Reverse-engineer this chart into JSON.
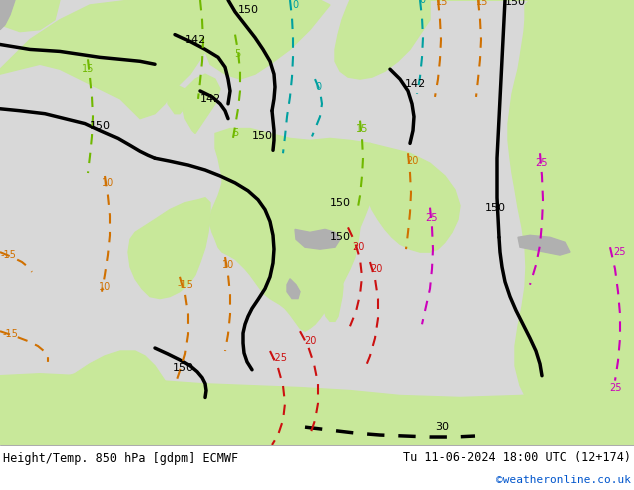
{
  "title_left": "Height/Temp. 850 hPa [gdpm] ECMWF",
  "title_right": "Tu 11-06-2024 18:00 UTC (12+174)",
  "credit": "©weatheronline.co.uk",
  "fig_width": 6.34,
  "fig_height": 4.9,
  "dpi": 100,
  "map_bg_land_green": "#c8e89a",
  "map_bg_land_gray": "#b0b0b0",
  "map_bg_sea": "#d8d8d8",
  "map_bg_white": "#f0f0f0",
  "footer_bg": "#ffffff",
  "footer_text_color": "#000000",
  "credit_color": "#0055cc",
  "black": "#000000",
  "teal": "#00a0a0",
  "lime": "#70b800",
  "orange": "#d07000",
  "red": "#cc1010",
  "magenta": "#cc00bb",
  "lw_thick": 2.5,
  "lw_thin": 1.5,
  "fs_label": 7,
  "fs_footer": 8.5
}
